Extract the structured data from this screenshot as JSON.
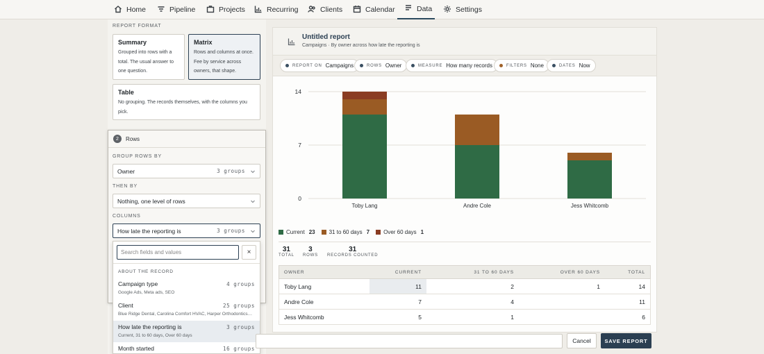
{
  "nav": {
    "items": [
      {
        "label": "Home",
        "icon": "home-icon"
      },
      {
        "label": "Pipeline",
        "icon": "filter-icon"
      },
      {
        "label": "Projects",
        "icon": "briefcase-icon"
      },
      {
        "label": "Recurring",
        "icon": "bar-chart-icon"
      },
      {
        "label": "Clients",
        "icon": "users-icon"
      },
      {
        "label": "Calendar",
        "icon": "calendar-icon"
      },
      {
        "label": "Data",
        "icon": "document-icon",
        "active": true
      },
      {
        "label": "Settings",
        "icon": "gear-icon"
      }
    ]
  },
  "format": {
    "section_label": "REPORT FORMAT",
    "options": [
      {
        "title": "Summary",
        "desc": "Grouped into rows with a total. The usual answer to one question.",
        "selected": false
      },
      {
        "title": "Matrix",
        "desc": "Rows and columns at once. Fee by service across owners, that shape.",
        "selected": true
      },
      {
        "title": "Table",
        "desc": "No grouping. The records themselves, with the columns you pick.",
        "selected": false
      }
    ]
  },
  "rows": {
    "step": "2",
    "title": "Rows",
    "group_label": "GROUP ROWS BY",
    "group_value": "Owner",
    "group_count": "3 groups",
    "then_label": "THEN BY",
    "then_value": "Nothing, one level of rows",
    "columns_label": "COLUMNS",
    "columns_value": "How late the reporting is",
    "columns_count": "3 groups"
  },
  "dropdown": {
    "search_placeholder": "Search fields and values",
    "clear": "×",
    "group_label": "ABOUT THE RECORD",
    "items": [
      {
        "name": "Campaign type",
        "sub": "Google Ads, Meta ads, SEO",
        "count": "4 groups",
        "highlight": false
      },
      {
        "name": "Client",
        "sub": "Blue Ridge Dental, Carolina Comfort HVAC, Harper Orthodontics…",
        "count": "25 groups",
        "highlight": false
      },
      {
        "name": "How late the reporting is",
        "sub": "Current, 31 to 60 days, Over 60 days",
        "count": "3 groups",
        "highlight": true
      },
      {
        "name": "Month started",
        "sub": "",
        "count": "16 groups",
        "highlight": false
      }
    ]
  },
  "report": {
    "title": "Untitled report",
    "subtitle": "Campaigns · By owner across how late the reporting is",
    "chips": [
      {
        "key": "REPORT ON",
        "value": "Campaigns",
        "filter": false
      },
      {
        "key": "ROWS",
        "value": "Owner",
        "filter": false
      },
      {
        "key": "MEASURE",
        "value": "How many records",
        "filter": false
      },
      {
        "key": "FILTERS",
        "value": "None",
        "filter": true
      },
      {
        "key": "DATES",
        "value": "Now",
        "filter": false
      }
    ]
  },
  "chart_data": {
    "type": "bar",
    "stacked": true,
    "categories": [
      "Toby Lang",
      "Andre Cole",
      "Jess Whitcomb"
    ],
    "series": [
      {
        "name": "Current",
        "values": [
          11,
          7,
          5
        ],
        "color": "#2f6b45"
      },
      {
        "name": "31 to 60 days",
        "values": [
          2,
          4,
          1
        ],
        "color": "#9a5b24"
      },
      {
        "name": "Over 60 days",
        "values": [
          1,
          0,
          0
        ],
        "color": "#8a3c22"
      }
    ],
    "yticks": [
      "0",
      "7",
      "14"
    ],
    "ylim": [
      0,
      14
    ],
    "grid": true,
    "legend_totals": [
      "23",
      "7",
      "1"
    ]
  },
  "stats": [
    {
      "value": "31",
      "label": "TOTAL"
    },
    {
      "value": "3",
      "label": "ROWS"
    },
    {
      "value": "31",
      "label": "RECORDS COUNTED"
    }
  ],
  "table": {
    "headers": [
      "OWNER",
      "CURRENT",
      "31 TO 60 DAYS",
      "OVER 60 DAYS",
      "TOTAL"
    ],
    "rows": [
      {
        "owner": "Toby Lang",
        "current": "11",
        "mid": "2",
        "over": "1",
        "total": "14"
      },
      {
        "owner": "Andre Cole",
        "current": "7",
        "mid": "4",
        "over": "",
        "total": "11"
      },
      {
        "owner": "Jess Whitcomb",
        "current": "5",
        "mid": "1",
        "over": "",
        "total": "6"
      }
    ]
  },
  "footer": {
    "cancel": "Cancel",
    "save": "SAVE REPORT"
  }
}
